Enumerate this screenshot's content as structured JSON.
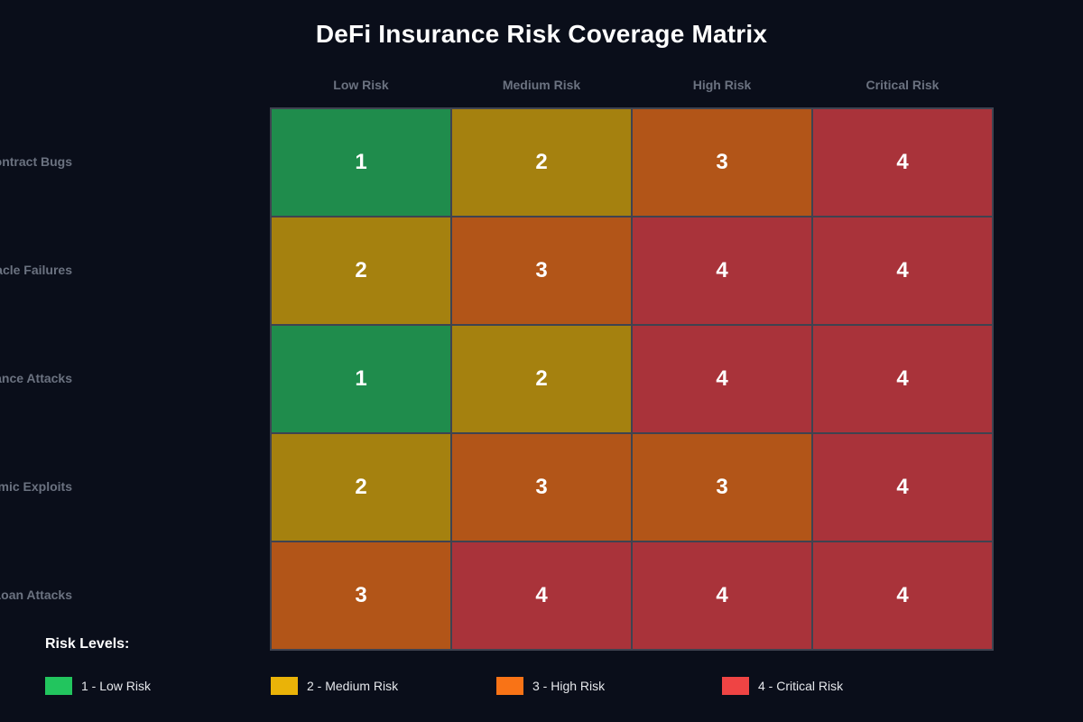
{
  "title": "DeFi Insurance Risk Coverage Matrix",
  "columns": [
    "Low Risk",
    "Medium Risk",
    "High Risk",
    "Critical Risk"
  ],
  "rows": [
    "Smart Contract Bugs",
    "Oracle Failures",
    "Governance Attacks",
    "Economic Exploits",
    "Flash Loan Attacks"
  ],
  "level_colors": {
    "1": "#1f8c4c",
    "2": "#a5810f",
    "3": "#b25518",
    "4": "#a9333a"
  },
  "chart_data": {
    "type": "heatmap",
    "title": "DeFi Insurance Risk Coverage Matrix",
    "x_categories": [
      "Low Risk",
      "Medium Risk",
      "High Risk",
      "Critical Risk"
    ],
    "y_categories": [
      "Smart Contract Bugs",
      "Oracle Failures",
      "Governance Attacks",
      "Economic Exploits",
      "Flash Loan Attacks"
    ],
    "values": [
      [
        1,
        2,
        3,
        4
      ],
      [
        2,
        3,
        4,
        4
      ],
      [
        1,
        2,
        4,
        4
      ],
      [
        2,
        3,
        3,
        4
      ],
      [
        3,
        4,
        4,
        4
      ]
    ],
    "value_range": [
      1,
      4
    ]
  },
  "legend": {
    "title": "Risk Levels:",
    "items": [
      {
        "label": "1 - Low Risk",
        "color": "#22c55e"
      },
      {
        "label": "2 - Medium Risk",
        "color": "#eab308"
      },
      {
        "label": "3 - High Risk",
        "color": "#f97316"
      },
      {
        "label": "4 - Critical Risk",
        "color": "#ef4444"
      }
    ]
  }
}
